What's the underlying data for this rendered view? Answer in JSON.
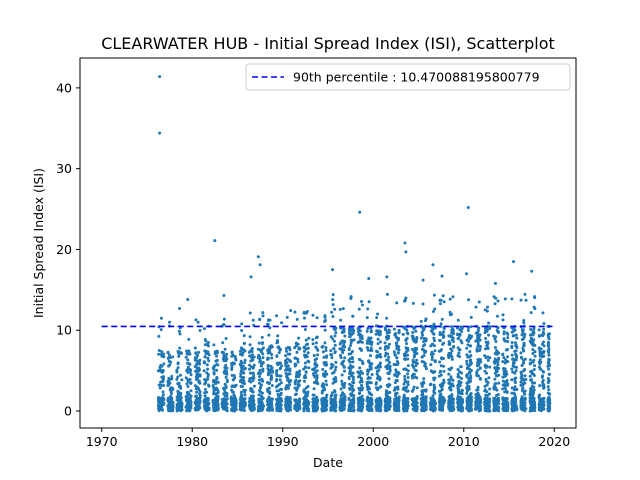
{
  "chart_data": {
    "type": "scatter",
    "title": "CLEARWATER HUB - Initial Spread Index (ISI), Scatterplot",
    "xlabel": "Date",
    "ylabel": "Initial Spread Index (ISI)",
    "xlim": [
      1967.6,
      2022.4
    ],
    "ylim": [
      -2.1,
      43.7
    ],
    "x_ticks": [
      1970,
      1980,
      1990,
      2000,
      2010,
      2020
    ],
    "y_ticks": [
      0,
      10,
      20,
      30,
      40
    ],
    "x_tick_labels": [
      "1970",
      "1980",
      "1990",
      "2000",
      "2010",
      "2020"
    ],
    "y_tick_labels": [
      "0",
      "10",
      "20",
      "30",
      "40"
    ],
    "grid": false,
    "legend_position": "top-right",
    "colors": {
      "points": "#1f77b4",
      "percentile_line": "#0000ff"
    },
    "reference_line": {
      "label": "90th percentile : 10.470088195800779",
      "y": 10.470088195800779,
      "x_start": 1970,
      "x_end": 2019.8,
      "style": "dashed"
    },
    "seasons": {
      "years": [
        1976,
        2019
      ],
      "season_start": 0.3,
      "season_end": 0.88
    },
    "outliers": [
      {
        "x": 1976.4,
        "y": 41.4
      },
      {
        "x": 1976.4,
        "y": 34.4
      },
      {
        "x": 1982.5,
        "y": 21.1
      },
      {
        "x": 1987.3,
        "y": 19.1
      },
      {
        "x": 1987.5,
        "y": 18.1
      },
      {
        "x": 1986.5,
        "y": 16.6
      },
      {
        "x": 1998.5,
        "y": 24.6
      },
      {
        "x": 2003.5,
        "y": 20.8
      },
      {
        "x": 2003.6,
        "y": 19.7
      },
      {
        "x": 2010.5,
        "y": 25.2
      },
      {
        "x": 1995.5,
        "y": 17.5
      },
      {
        "x": 2006.6,
        "y": 18.1
      },
      {
        "x": 2010.3,
        "y": 17.0
      },
      {
        "x": 2015.5,
        "y": 18.5
      },
      {
        "x": 2017.5,
        "y": 17.3
      },
      {
        "x": 1978.6,
        "y": 12.7
      },
      {
        "x": 1979.5,
        "y": 13.8
      },
      {
        "x": 1983.5,
        "y": 14.3
      },
      {
        "x": 2001.5,
        "y": 16.6
      },
      {
        "x": 2007.6,
        "y": 16.7
      },
      {
        "x": 1999.5,
        "y": 16.4
      },
      {
        "x": 2013.5,
        "y": 15.8
      },
      {
        "x": 2005.5,
        "y": 16.2
      },
      {
        "x": 1992.6,
        "y": 12.1
      },
      {
        "x": 1990.5,
        "y": 11.6
      }
    ]
  }
}
